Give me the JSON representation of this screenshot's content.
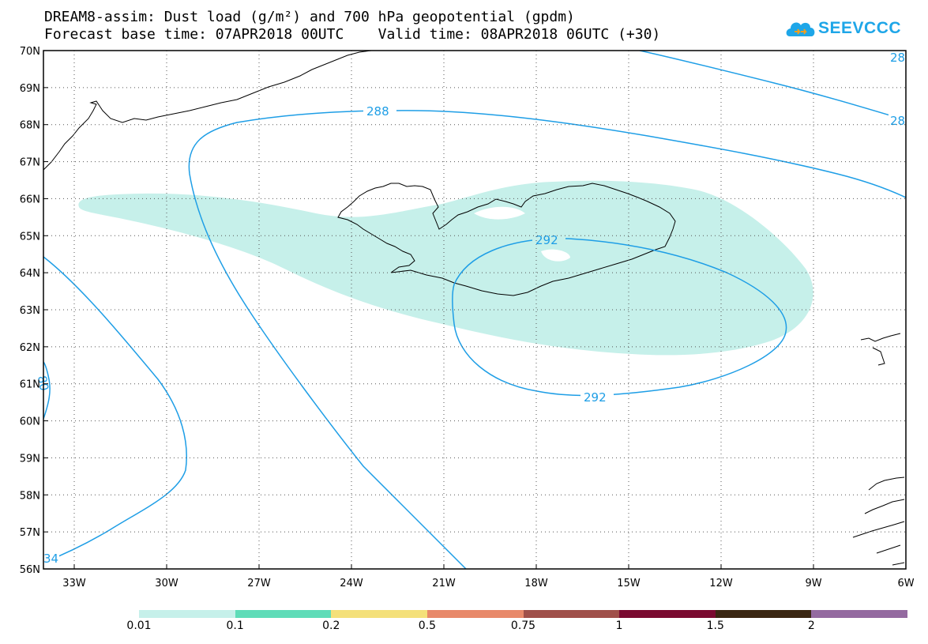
{
  "title": {
    "line1": "DREAM8-assim: Dust load (g/m²) and 700 hPa geopotential (gpdm)",
    "line2": "Forecast base time: 07APR2018 00UTC    Valid time: 08APR2018 06UTC (+30)"
  },
  "logo": {
    "text": "SEEVCCC",
    "icon": "cloud-icon",
    "color": "#1ea6e8"
  },
  "map": {
    "lat_labels": [
      "70N",
      "69N",
      "68N",
      "67N",
      "66N",
      "65N",
      "64N",
      "63N",
      "62N",
      "61N",
      "60N",
      "59N",
      "58N",
      "57N",
      "56N"
    ],
    "lon_labels": [
      "33W",
      "30W",
      "27W",
      "24W",
      "21W",
      "18W",
      "15W",
      "12W",
      "9W",
      "6W"
    ],
    "contour_labels": [
      "288",
      "292",
      "292",
      "28",
      "28",
      "80",
      "34"
    ],
    "contour_color": "#1e9ee6",
    "dust_fill_color": "#c6f0ea"
  },
  "colorbar": {
    "colors": [
      "#c6f0ea",
      "#5fdcb8",
      "#f4e07a",
      "#e8896a",
      "#a0504a",
      "#7a0a30",
      "#3a2612",
      "#946aa0"
    ],
    "labels": [
      "0.01",
      "0.1",
      "0.2",
      "0.5",
      "0.75",
      "1",
      "1.5",
      "2"
    ]
  }
}
